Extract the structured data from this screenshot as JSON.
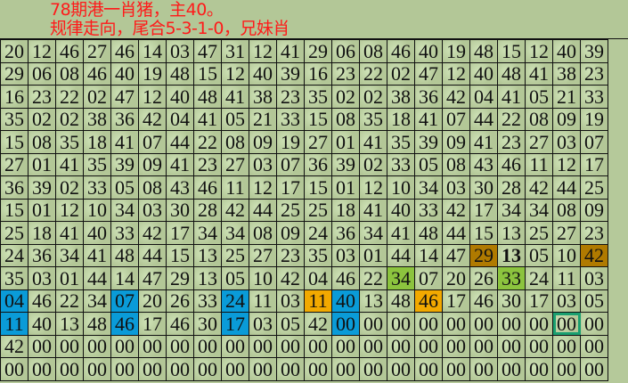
{
  "groups": [
    [
      "20",
      "12",
      "46",
      "27",
      "46",
      "14",
      "03",
      "47",
      "31",
      "12",
      "41"
    ],
    [
      "29",
      "06",
      "08",
      "46",
      "40",
      "19",
      "48",
      "15",
      "12",
      "40",
      "39"
    ],
    [
      "16",
      "23",
      "22",
      "02",
      "47",
      "12",
      "40",
      "48",
      "41",
      "38",
      "23"
    ],
    [
      "35",
      "02",
      "02",
      "38",
      "36",
      "42",
      "04",
      "41",
      "05",
      "21",
      "33"
    ],
    [
      "15",
      "08",
      "35",
      "18",
      "41",
      "07",
      "44",
      "22",
      "08",
      "09",
      "19"
    ],
    [
      "27",
      "01",
      "41",
      "35",
      "39",
      "09",
      "41",
      "23",
      "27",
      "03",
      "07"
    ],
    [
      "36",
      "39",
      "02",
      "33",
      "05",
      "08",
      "43",
      "46",
      "11",
      "12",
      "17"
    ],
    [
      "15",
      "01",
      "12",
      "10",
      "34",
      "03",
      "30",
      "28",
      "42",
      "44",
      "25"
    ],
    [
      "25",
      "18",
      "41",
      "40",
      "33",
      "42",
      "17",
      "34",
      "34",
      "08",
      "09"
    ],
    [
      "24",
      "36",
      "34",
      "41",
      "48",
      "44",
      "15",
      "13",
      "25",
      "27",
      "23"
    ],
    [
      "35",
      "03",
      "01",
      "44",
      "14",
      "47",
      "29",
      "13",
      "05",
      "10",
      "42"
    ],
    [
      "04",
      "46",
      "22",
      "34",
      "07",
      "20",
      "26",
      "33",
      "24",
      "11",
      "03"
    ],
    [
      "11",
      "40",
      "13",
      "48",
      "46",
      "17",
      "46",
      "30",
      "17",
      "03",
      "05"
    ],
    [
      "42",
      "00",
      "00",
      "00",
      "00",
      "00",
      "00",
      "00",
      "00",
      "00",
      "00"
    ],
    [
      "00",
      "00",
      "00",
      "00",
      "00",
      "00",
      "00",
      "00",
      "00",
      "00",
      "00"
    ],
    [
      "00",
      "00",
      "00",
      "00",
      "00",
      "00",
      "00",
      "00",
      "00",
      "00",
      "00"
    ]
  ],
  "colors": {
    "blue": "#0a9bd8",
    "orange": "#f2a900",
    "brown": "#b07a00",
    "green": "#8cc43e",
    "selected_border": "#1aa070",
    "annotation": "#ff1a1a"
  },
  "highlights": [
    {
      "row": 9,
      "col": 17,
      "color": "brown"
    },
    {
      "row": 9,
      "col": 18,
      "style": "bold"
    },
    {
      "row": 9,
      "col": 21,
      "color": "brown"
    },
    {
      "row": 10,
      "col": 14,
      "color": "green"
    },
    {
      "row": 10,
      "col": 18,
      "color": "green"
    },
    {
      "row": 11,
      "col": 0,
      "color": "blue"
    },
    {
      "row": 11,
      "col": 4,
      "color": "blue"
    },
    {
      "row": 11,
      "col": 8,
      "color": "blue"
    },
    {
      "row": 11,
      "col": 11,
      "color": "orange"
    },
    {
      "row": 11,
      "col": 12,
      "color": "blue"
    },
    {
      "row": 11,
      "col": 15,
      "color": "orange"
    },
    {
      "row": 12,
      "col": 0,
      "color": "blue"
    },
    {
      "row": 12,
      "col": 4,
      "color": "blue"
    },
    {
      "row": 12,
      "col": 8,
      "color": "blue"
    },
    {
      "row": 12,
      "col": 12,
      "color": "blue"
    },
    {
      "row": 12,
      "col": 20,
      "style": "selected"
    }
  ],
  "annotation": {
    "line1": "78期港一肖猪，主40。",
    "line2": "规律走向，尾合5-3-1-0，兄妹肖"
  }
}
